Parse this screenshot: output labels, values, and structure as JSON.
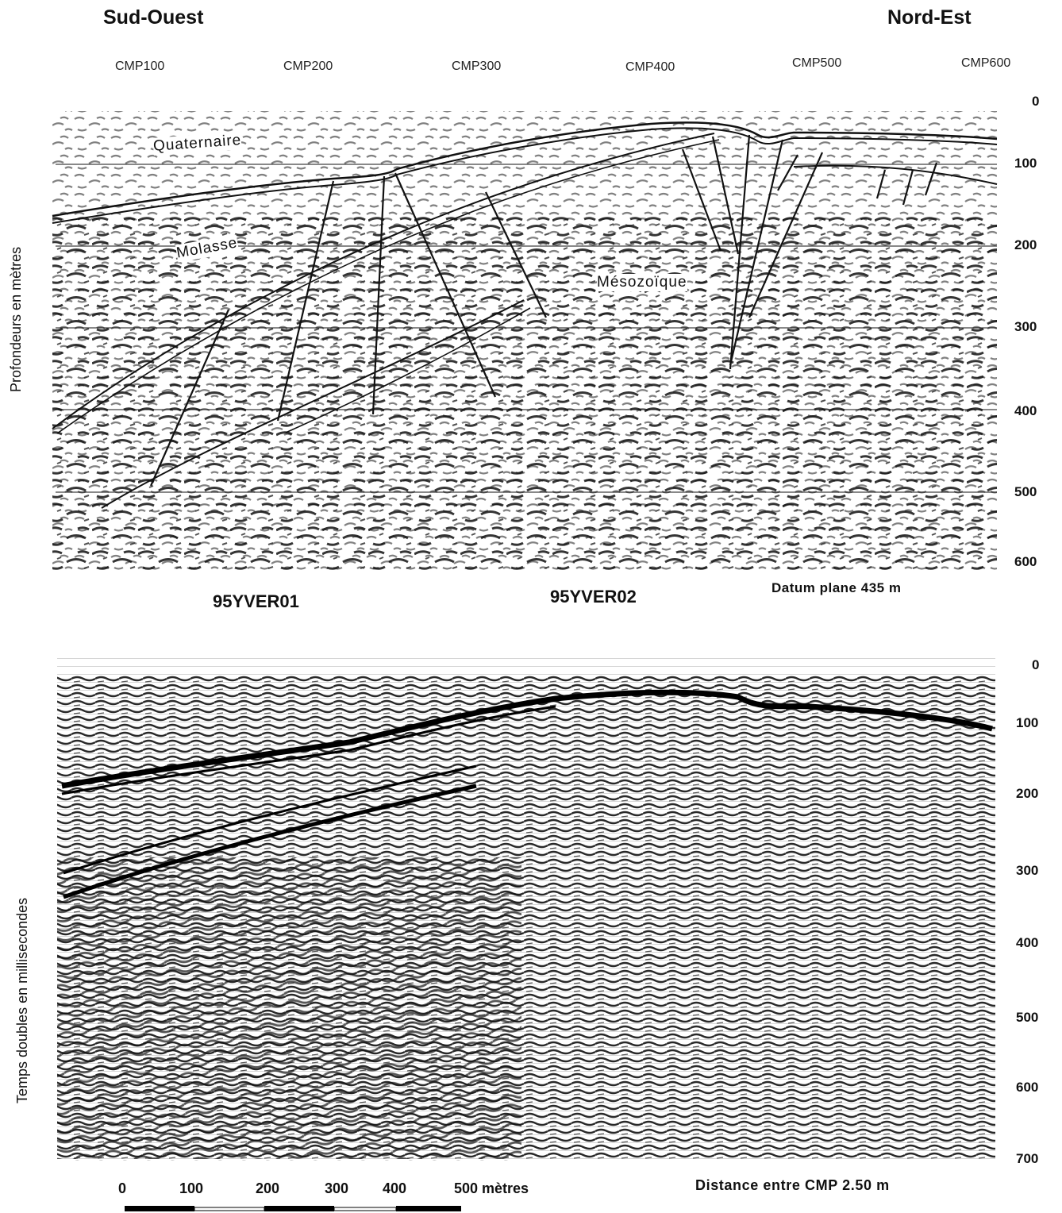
{
  "headings": {
    "left": "Sud-Ouest",
    "right": "Nord-Est"
  },
  "cmp_labels": [
    "CMP100",
    "CMP200",
    "CMP300",
    "CMP400",
    "CMP500",
    "CMP600"
  ],
  "top_section": {
    "ylabel": "Profondeurs en mètres",
    "depth_ticks": [
      "0",
      "100",
      "200",
      "300",
      "400",
      "500",
      "600"
    ],
    "units": {
      "quaternaire": "Quaternaire",
      "molasse": "Molasse",
      "mesozoique": "Mésozoïque"
    },
    "datum": "Datum plane 435 m"
  },
  "line_names": {
    "line1": "95YVER01",
    "line2": "95YVER02"
  },
  "bottom_section": {
    "ylabel": "Temps doubles en millisecondes",
    "time_ticks": [
      "0",
      "100",
      "200",
      "300",
      "400",
      "500",
      "600",
      "700"
    ],
    "cmp_spacing": "Distance entre CMP 2.50 m"
  },
  "scale_bar": {
    "labels": [
      "0",
      "100",
      "200",
      "300",
      "400"
    ],
    "last_label": "500 mètres"
  },
  "colors": {
    "ink": "#111111",
    "paper": "#ffffff"
  }
}
